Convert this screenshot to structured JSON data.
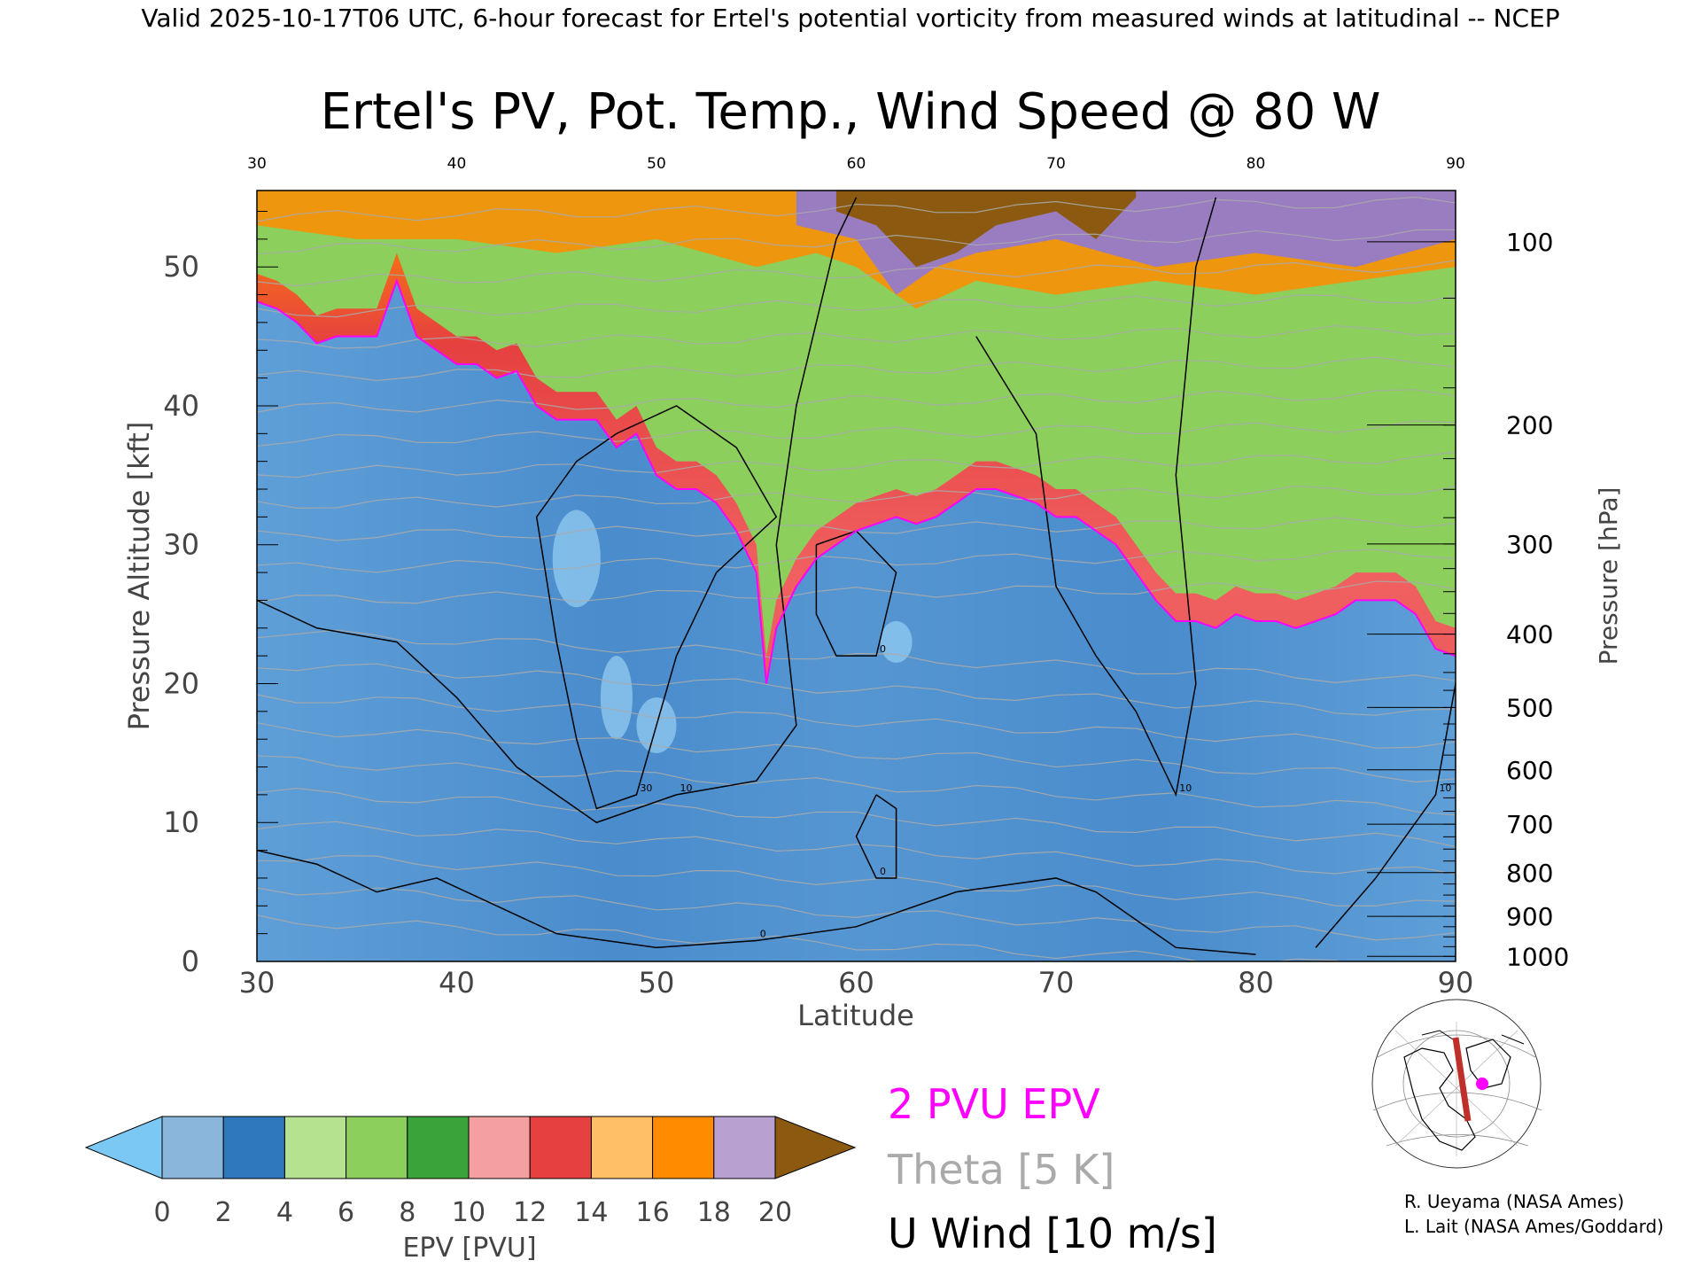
{
  "header_text": "Valid 2025-10-17T06 UTC, 6-hour forecast for Ertel's potential vorticity from measured winds at latitudinal -- NCEP",
  "chart_data": {
    "type": "heatmap",
    "title": "Ertel's PV, Pot. Temp., Wind Speed @ 80 W",
    "xlabel": "Latitude",
    "ylabel_left": "Pressure Altitude [kft]",
    "ylabel_right": "Pressure [hPa]",
    "xlim": [
      30,
      90
    ],
    "ylim_kft": [
      0,
      55.5
    ],
    "x_ticks": [
      "30",
      "40",
      "50",
      "60",
      "70",
      "80",
      "90"
    ],
    "y_ticks_kft": [
      "0",
      "10",
      "20",
      "30",
      "40",
      "50"
    ],
    "pressure_ticks": [
      "100",
      "200",
      "300",
      "400",
      "500",
      "600",
      "700",
      "800",
      "900",
      "1000"
    ],
    "tropopause_2pvu_kft": [
      [
        30,
        47.5
      ],
      [
        31,
        47
      ],
      [
        32,
        46
      ],
      [
        33,
        44.5
      ],
      [
        34,
        45
      ],
      [
        35,
        45
      ],
      [
        36,
        45
      ],
      [
        37,
        49
      ],
      [
        38,
        45
      ],
      [
        39,
        44
      ],
      [
        40,
        43
      ],
      [
        41,
        43
      ],
      [
        42,
        42
      ],
      [
        43,
        42.5
      ],
      [
        44,
        40
      ],
      [
        45,
        39
      ],
      [
        46,
        39
      ],
      [
        47,
        39
      ],
      [
        48,
        37
      ],
      [
        49,
        38
      ],
      [
        50,
        35
      ],
      [
        51,
        34
      ],
      [
        52,
        34
      ],
      [
        53,
        33
      ],
      [
        54,
        31
      ],
      [
        55,
        28
      ],
      [
        55.5,
        20
      ],
      [
        56,
        24
      ],
      [
        57,
        27
      ],
      [
        58,
        29
      ],
      [
        59,
        30
      ],
      [
        60,
        31
      ],
      [
        61,
        31.5
      ],
      [
        62,
        32
      ],
      [
        63,
        31.5
      ],
      [
        64,
        32
      ],
      [
        65,
        33
      ],
      [
        66,
        34
      ],
      [
        67,
        34
      ],
      [
        68,
        33.5
      ],
      [
        69,
        33
      ],
      [
        70,
        32
      ],
      [
        71,
        32
      ],
      [
        72,
        31
      ],
      [
        73,
        30
      ],
      [
        74,
        28
      ],
      [
        75,
        26
      ],
      [
        76,
        24.5
      ],
      [
        77,
        24.5
      ],
      [
        78,
        24
      ],
      [
        79,
        25
      ],
      [
        80,
        24.5
      ],
      [
        81,
        24.5
      ],
      [
        82,
        24
      ],
      [
        83,
        24.5
      ],
      [
        84,
        25
      ],
      [
        85,
        26
      ],
      [
        86,
        26
      ],
      [
        87,
        26
      ],
      [
        88,
        25
      ],
      [
        89,
        22.5
      ],
      [
        90,
        22
      ]
    ],
    "u_wind_contours": [
      {
        "label": "30",
        "points": [
          [
            48,
            38
          ],
          [
            51,
            40
          ],
          [
            54,
            37
          ],
          [
            56,
            32
          ],
          [
            53,
            28
          ],
          [
            51,
            22
          ],
          [
            49,
            12
          ],
          [
            47,
            11
          ],
          [
            46,
            16
          ],
          [
            45,
            23
          ],
          [
            44,
            32
          ],
          [
            46,
            36
          ],
          [
            48,
            38
          ]
        ]
      },
      {
        "label": "10",
        "points": [
          [
            30,
            26
          ],
          [
            33,
            24
          ],
          [
            37,
            23
          ],
          [
            40,
            19
          ],
          [
            43,
            14
          ],
          [
            47,
            10
          ],
          [
            51,
            12
          ],
          [
            55,
            13
          ],
          [
            57,
            17
          ],
          [
            56,
            30
          ],
          [
            57,
            40
          ],
          [
            59,
            52
          ],
          [
            60,
            55
          ]
        ]
      },
      {
        "label": "10",
        "points": [
          [
            66,
            45
          ],
          [
            69,
            38
          ],
          [
            70,
            27
          ],
          [
            72,
            22
          ],
          [
            74,
            18
          ],
          [
            76,
            12
          ],
          [
            77,
            20
          ],
          [
            76,
            35
          ],
          [
            77,
            50
          ],
          [
            78,
            55
          ]
        ]
      },
      {
        "label": "0",
        "points": [
          [
            58,
            30
          ],
          [
            60,
            31
          ],
          [
            62,
            28
          ],
          [
            61,
            22
          ],
          [
            59,
            22
          ],
          [
            58,
            25
          ],
          [
            58,
            30
          ]
        ]
      },
      {
        "label": "0",
        "points": [
          [
            61,
            12
          ],
          [
            62,
            11
          ],
          [
            62,
            6
          ],
          [
            61,
            6
          ],
          [
            60,
            9
          ],
          [
            61,
            12
          ]
        ]
      },
      {
        "label": "0",
        "points": [
          [
            30,
            8
          ],
          [
            33,
            7
          ],
          [
            36,
            5
          ],
          [
            39,
            6
          ],
          [
            42,
            4
          ],
          [
            45,
            2
          ],
          [
            50,
            1
          ],
          [
            55,
            1.5
          ],
          [
            60,
            2.5
          ],
          [
            65,
            5
          ],
          [
            70,
            6
          ],
          [
            72,
            5
          ],
          [
            74,
            3
          ],
          [
            76,
            1
          ],
          [
            80,
            0.5
          ]
        ]
      },
      {
        "label": "10",
        "points": [
          [
            83,
            1
          ],
          [
            86,
            6
          ],
          [
            89,
            12
          ],
          [
            90,
            20
          ]
        ]
      }
    ],
    "colorbar": {
      "label": "EPV [PVU]",
      "ticks": [
        "0",
        "2",
        "4",
        "6",
        "8",
        "10",
        "12",
        "14",
        "16",
        "18",
        "20"
      ],
      "colors": [
        "#7cc8f5",
        "#8ab6dc",
        "#2f78bd",
        "#b5e28e",
        "#8ccf5c",
        "#3aa33a",
        "#f5a0a0",
        "#e64040",
        "#ffbf66",
        "#ff8c00",
        "#b8a0d0",
        "#7a4fa0",
        "#fff5a0",
        "#8b5a10"
      ]
    },
    "legend": [
      {
        "label": "2 PVU EPV",
        "color": "#ff00ff"
      },
      {
        "label": "Theta [5 K]",
        "color": "#aaaaaa"
      },
      {
        "label": "U Wind [10 m/s]",
        "color": "#000000"
      }
    ],
    "colors": {
      "tropopause": "#ff00ff",
      "theta": "#aaaaaa",
      "wind": "#000000",
      "map_track": "#c0302a",
      "map_marker": "#ff00ff"
    }
  },
  "credits": [
    "R. Ueyama (NASA Ames)",
    "L. Lait (NASA Ames/Goddard)"
  ]
}
